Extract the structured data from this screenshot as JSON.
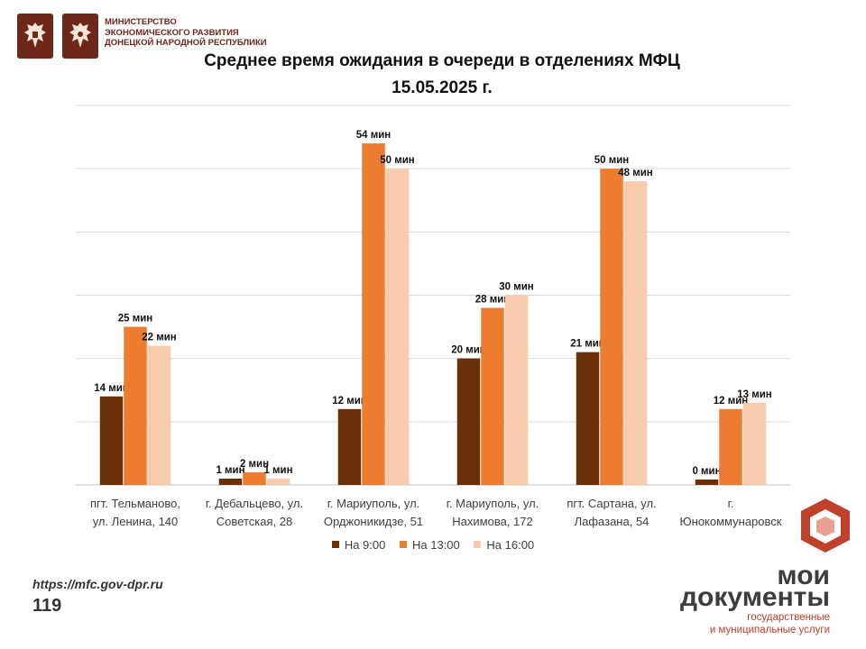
{
  "header": {
    "ministry_lines": [
      "МИНИСТЕРСТВО",
      "ЭКОНОМИЧЕСКОГО РАЗВИТИЯ",
      "ДОНЕЦКОЙ НАРОДНОЙ РЕСПУБЛИКИ"
    ],
    "title_line1": "Среднее время ожидания в очереди в отделениях МФЦ",
    "title_line2": "15.05.2025   г."
  },
  "chart_data": {
    "type": "bar",
    "categories": [
      [
        "пгт. Тельманово,",
        "ул. Ленина, 140"
      ],
      [
        "г. Дебальцево, ул.",
        "Советская, 28"
      ],
      [
        "г. Мариуполь, ул.",
        "Орджоникидзе, 51"
      ],
      [
        "г. Мариуполь, ул.",
        "Нахимова, 172"
      ],
      [
        "пгт. Сартана, ул.",
        "Лафазана, 54"
      ],
      [
        "г.",
        "Юнокоммунаровск"
      ]
    ],
    "series": [
      {
        "name": "На 9:00",
        "color": "#6a3108",
        "values": [
          14,
          1,
          12,
          20,
          21,
          0
        ],
        "labels": [
          "14 мин",
          "1 мин",
          "12 мин",
          "20 мин",
          "21 мин",
          "0 мин"
        ]
      },
      {
        "name": "На 13:00",
        "color": "#ec7c30",
        "values": [
          25,
          2,
          54,
          28,
          50,
          12
        ],
        "labels": [
          "25 мин",
          "2 мин",
          "54  мин",
          "28 мин",
          "50 мин",
          "12 мин"
        ]
      },
      {
        "name": "На 16:00",
        "color": "#f8cbad",
        "values": [
          22,
          1,
          50,
          30,
          48,
          13
        ],
        "labels": [
          "22 мин",
          "1 мин",
          "50 мин",
          "30 мин",
          "48 мин",
          "13 мин"
        ]
      }
    ],
    "ylim": [
      0,
      60
    ],
    "grid": true,
    "legend_position": "bottom"
  },
  "footer": {
    "url": "https://mfc.gov-dpr.ru",
    "page_number": "119"
  },
  "brand": {
    "line1": "мои",
    "line2": "документы",
    "sub1": "государственные",
    "sub2": "и муниципальные услуги",
    "accent": "#c0412b"
  }
}
